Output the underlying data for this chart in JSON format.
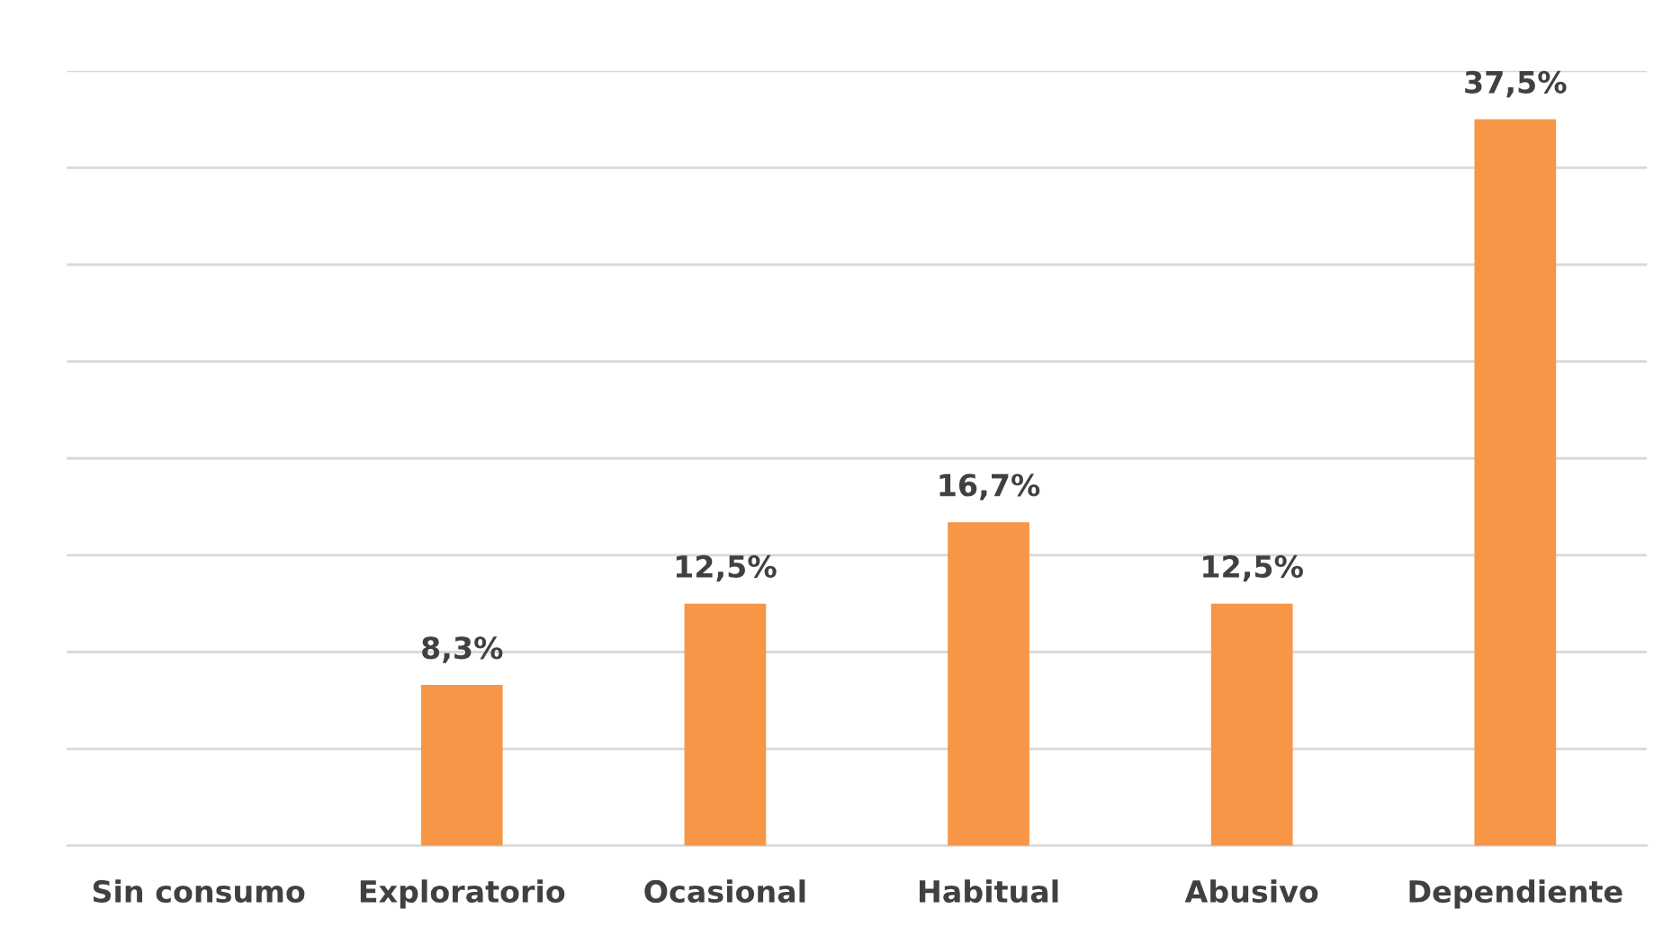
{
  "chart_data": {
    "type": "bar",
    "categories": [
      "Sin consumo",
      "Exploratorio",
      "Ocasional",
      "Habitual",
      "Abusivo",
      "Dependiente"
    ],
    "values": [
      0,
      8.3,
      12.5,
      16.7,
      12.5,
      37.5
    ],
    "value_labels": [
      null,
      "8,3%",
      "12,5%",
      "16,7%",
      "12,5%",
      "37,5%"
    ],
    "color": "#f79646",
    "ylim": [
      0,
      40
    ],
    "yticks": [
      {
        "value": 0,
        "label": null
      },
      {
        "value": 5,
        "label": null
      },
      {
        "value": 10,
        "label": null
      },
      {
        "value": 15,
        "label": null
      },
      {
        "value": 20,
        "label": null
      },
      {
        "value": 25,
        "label": null
      },
      {
        "value": 30,
        "label": null
      },
      {
        "value": 35,
        "label": null
      },
      {
        "value": 40,
        "label": null
      }
    ],
    "grid": "y",
    "tick_labels": "x"
  }
}
